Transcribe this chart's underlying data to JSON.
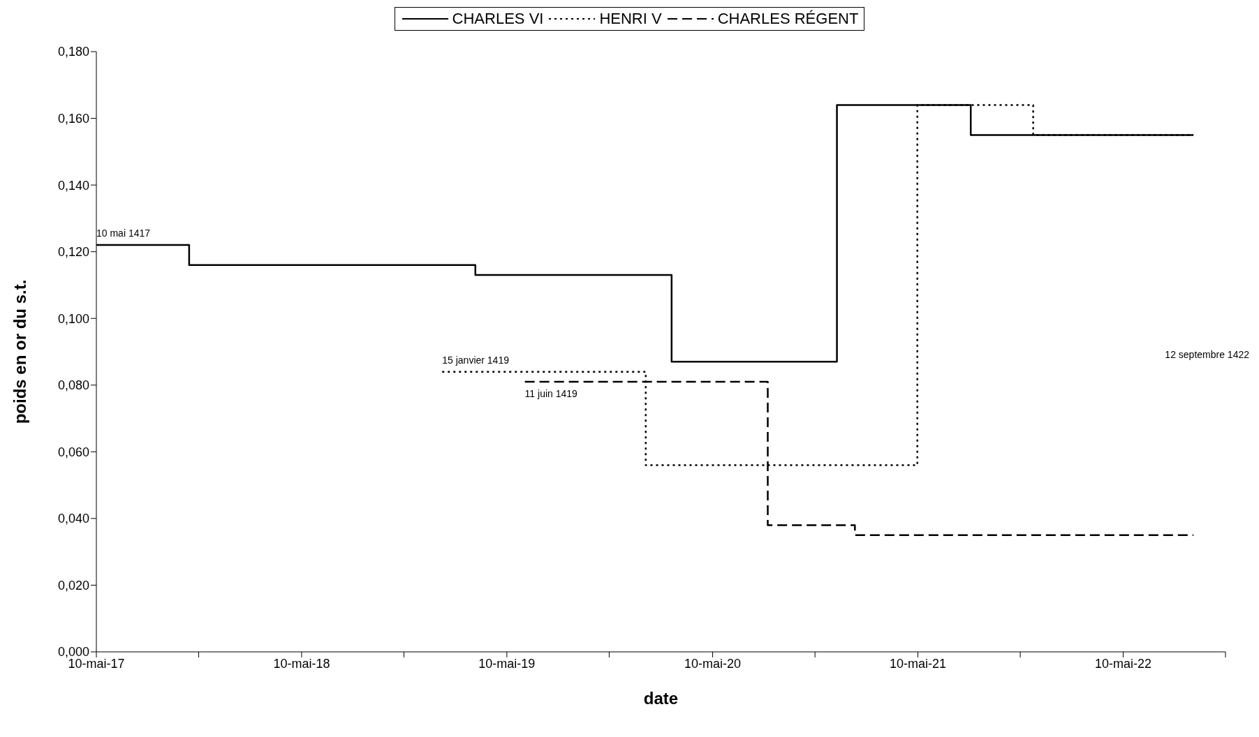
{
  "chart_data": {
    "type": "step",
    "xlabel": "date",
    "ylabel": "poids en or du s.t.",
    "legend": "top",
    "xlim": [
      "1417-05-10",
      "1422-11-08"
    ],
    "xticks": [
      {
        "value": "1417-05-10",
        "label": "10-mai-17"
      },
      {
        "value": "1417-11-08",
        "label": null
      },
      {
        "value": "1418-05-10",
        "label": "10-mai-18"
      },
      {
        "value": "1418-11-08",
        "label": null
      },
      {
        "value": "1419-05-10",
        "label": "10-mai-19"
      },
      {
        "value": "1419-11-08",
        "label": null
      },
      {
        "value": "1420-05-10",
        "label": "10-mai-20"
      },
      {
        "value": "1420-11-08",
        "label": null
      },
      {
        "value": "1421-05-10",
        "label": "10-mai-21"
      },
      {
        "value": "1421-11-08",
        "label": null
      },
      {
        "value": "1422-05-10",
        "label": "10-mai-22"
      },
      {
        "value": "1422-11-08",
        "label": null
      }
    ],
    "ylim": [
      0,
      0.18
    ],
    "yticks": [
      {
        "value": 0,
        "label": "0,000"
      },
      {
        "value": 0.02,
        "label": "0,020"
      },
      {
        "value": 0.04,
        "label": "0,040"
      },
      {
        "value": 0.06,
        "label": "0,060"
      },
      {
        "value": 0.08,
        "label": "0,080"
      },
      {
        "value": 0.1,
        "label": "0,100"
      },
      {
        "value": 0.12,
        "label": "0,120"
      },
      {
        "value": 0.14,
        "label": "0,140"
      },
      {
        "value": 0.16,
        "label": "0,160"
      },
      {
        "value": 0.18,
        "label": "0,180"
      }
    ],
    "marker": "none",
    "series": [
      {
        "name": "CHARLES VI",
        "color": "#000000",
        "line_style": "solid",
        "x": [
          "1417-05-10",
          "1417-10-22",
          "1419-03-15",
          "1420-02-27",
          "1420-12-17",
          "1421-08-12",
          "1422-09-12"
        ],
        "values": [
          0.122,
          0.116,
          0.113,
          0.087,
          0.164,
          0.155,
          0.155
        ]
      },
      {
        "name": "HENRI V",
        "color": "#000000",
        "line_style": "dotted",
        "x": [
          "1419-01-15",
          "1420-01-12",
          "1421-05-09",
          "1421-12-01",
          "1422-09-12"
        ],
        "values": [
          0.084,
          0.056,
          0.164,
          0.155,
          0.155
        ]
      },
      {
        "name": "CHARLES RÉGENT",
        "color": "#000000",
        "line_style": "dashed",
        "x": [
          "1419-06-11",
          "1420-08-16",
          "1421-01-18",
          "1422-09-12"
        ],
        "values": [
          0.081,
          0.038,
          0.035,
          0.035
        ]
      }
    ],
    "annotations": [
      {
        "text": "10 mai 1417",
        "x": "1417-05-10",
        "y": 0.122
      },
      {
        "text": "15 janvier 1419",
        "x": "1419-01-15",
        "y": 0.084
      },
      {
        "text": "11 juin 1419",
        "x": "1419-06-11",
        "y": 0.081
      },
      "12 septembre 1422"
    ]
  }
}
